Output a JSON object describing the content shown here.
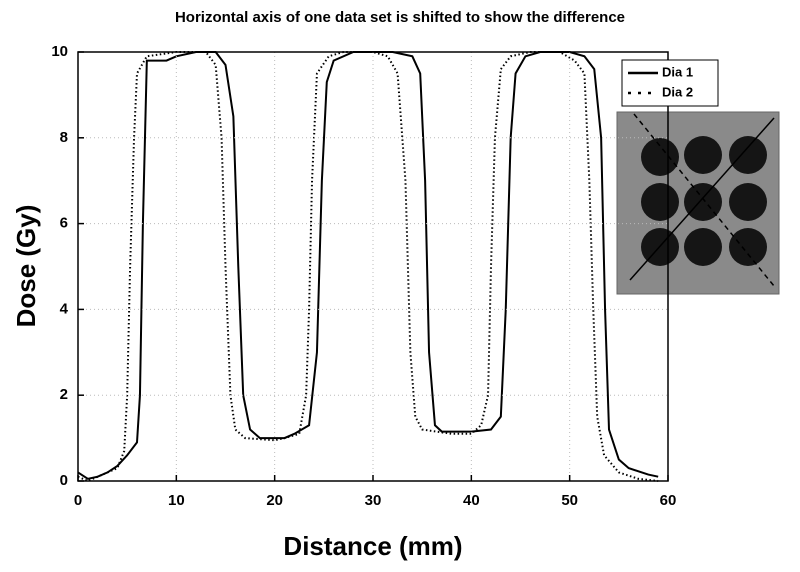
{
  "chart_data": {
    "type": "line",
    "title": "Horizontal axis of one data set is shifted to show the difference",
    "x_label": "Distance (mm)",
    "y_label": "Dose (Gy)",
    "xlim": [
      0,
      60
    ],
    "xticks": [
      0,
      10,
      20,
      30,
      40,
      50,
      60
    ],
    "ylim": [
      0,
      10
    ],
    "yticks": [
      0,
      2,
      4,
      6,
      8,
      10
    ],
    "grid": true,
    "legend": "upper right",
    "series": [
      {
        "name": "Dia 1",
        "color": "#000000",
        "dash": "solid",
        "x": [
          0,
          1,
          2,
          3,
          4,
          5,
          6,
          6.3,
          6.6,
          7,
          9,
          10,
          12,
          14,
          15,
          15.8,
          16.3,
          16.8,
          17.5,
          18.5,
          21,
          22,
          23.5,
          24.3,
          24.8,
          25.3,
          26,
          28,
          32,
          34,
          34.8,
          35.3,
          35.7,
          36.3,
          37,
          40,
          42,
          43,
          43.5,
          44,
          44.5,
          45.5,
          47,
          50,
          51.5,
          52.5,
          53.2,
          53.6,
          54,
          55,
          56,
          58,
          59
        ],
        "values": [
          0.2,
          0.05,
          0.1,
          0.2,
          0.35,
          0.6,
          0.9,
          2,
          6,
          9.8,
          9.8,
          9.9,
          10,
          10,
          9.7,
          8.5,
          5,
          2,
          1.2,
          1.0,
          1.0,
          1.1,
          1.3,
          3,
          7,
          9.3,
          9.8,
          10,
          10,
          9.9,
          9.5,
          7,
          3,
          1.3,
          1.15,
          1.15,
          1.2,
          1.5,
          4,
          8,
          9.5,
          9.9,
          10,
          10,
          9.9,
          9.6,
          8,
          4,
          1.2,
          0.5,
          0.3,
          0.15,
          0.1
        ]
      },
      {
        "name": "Dia 2",
        "color": "#000000",
        "dash": "dotted",
        "x": [
          0,
          1,
          2,
          3,
          4,
          4.7,
          5,
          5.3,
          5.7,
          6,
          7,
          10,
          13,
          14,
          14.6,
          15,
          15.5,
          16,
          17,
          20,
          21,
          22.5,
          23.2,
          23.5,
          23.8,
          24.3,
          25.5,
          27,
          30,
          31.5,
          32.5,
          33.3,
          33.8,
          34.3,
          35,
          38,
          40,
          41,
          41.7,
          42,
          42.4,
          43,
          44,
          46,
          49,
          50.5,
          51.5,
          52,
          52.4,
          52.8,
          53.5,
          55,
          57,
          59
        ],
        "values": [
          0.1,
          0,
          0.1,
          0.2,
          0.3,
          0.7,
          2,
          5,
          8,
          9.5,
          9.9,
          10,
          10,
          9.7,
          8,
          5,
          2,
          1.2,
          1.0,
          0.95,
          1.0,
          1.1,
          2,
          4,
          7,
          9.5,
          9.9,
          10,
          10,
          9.9,
          9.5,
          7,
          3,
          1.5,
          1.2,
          1.1,
          1.1,
          1.3,
          2,
          5,
          8,
          9.6,
          9.9,
          10,
          10,
          9.8,
          9.5,
          7,
          4,
          1.5,
          0.6,
          0.2,
          0.05,
          0
        ]
      }
    ]
  }
}
